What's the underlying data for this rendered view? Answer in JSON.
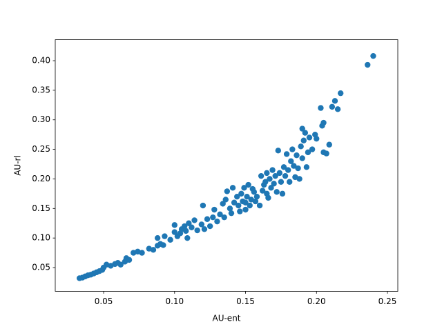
{
  "chart_data": {
    "type": "scatter",
    "x_label": "AU-ent",
    "y_label": "AU-rl",
    "color": "#1f77b4",
    "xlim": [
      0.0159,
      0.2573
    ],
    "ylim": [
      0.0099,
      0.4355
    ],
    "xticks": [
      0.05,
      {
        "value": 0.1,
        "label": "0.10"
      },
      0.15,
      {
        "value": 0.2,
        "label": "0.20"
      },
      0.25
    ],
    "yticks": [
      0.05,
      {
        "value": 0.1,
        "label": "0.10"
      },
      0.15,
      {
        "value": 0.2,
        "label": "0.20"
      },
      0.25,
      {
        "value": 0.3,
        "label": "0.30"
      },
      0.35,
      {
        "value": 0.4,
        "label": "0.40"
      }
    ],
    "x": [
      0.033,
      0.035,
      0.037,
      0.039,
      0.041,
      0.043,
      0.045,
      0.047,
      0.049,
      0.05,
      0.052,
      0.055,
      0.058,
      0.06,
      0.062,
      0.065,
      0.066,
      0.068,
      0.071,
      0.074,
      0.077,
      0.082,
      0.085,
      0.088,
      0.088,
      0.09,
      0.092,
      0.093,
      0.097,
      0.1,
      0.1,
      0.102,
      0.104,
      0.105,
      0.107,
      0.108,
      0.109,
      0.11,
      0.112,
      0.114,
      0.116,
      0.119,
      0.12,
      0.121,
      0.123,
      0.125,
      0.127,
      0.128,
      0.13,
      0.132,
      0.134,
      0.135,
      0.136,
      0.137,
      0.139,
      0.14,
      0.141,
      0.142,
      0.144,
      0.145,
      0.146,
      0.147,
      0.148,
      0.149,
      0.15,
      0.15,
      0.151,
      0.152,
      0.153,
      0.154,
      0.155,
      0.156,
      0.157,
      0.158,
      0.16,
      0.161,
      0.162,
      0.163,
      0.164,
      0.165,
      0.165,
      0.166,
      0.167,
      0.168,
      0.169,
      0.17,
      0.171,
      0.172,
      0.173,
      0.174,
      0.175,
      0.176,
      0.177,
      0.178,
      0.179,
      0.18,
      0.181,
      0.182,
      0.183,
      0.184,
      0.185,
      0.186,
      0.187,
      0.188,
      0.189,
      0.19,
      0.19,
      0.191,
      0.192,
      0.193,
      0.194,
      0.195,
      0.197,
      0.199,
      0.2,
      0.203,
      0.204,
      0.205,
      0.205,
      0.207,
      0.209,
      0.211,
      0.213,
      0.215,
      0.217,
      0.236,
      0.24
    ],
    "y": [
      0.032,
      0.033,
      0.035,
      0.037,
      0.038,
      0.04,
      0.042,
      0.044,
      0.046,
      0.05,
      0.055,
      0.053,
      0.056,
      0.058,
      0.055,
      0.06,
      0.066,
      0.063,
      0.075,
      0.077,
      0.075,
      0.082,
      0.08,
      0.087,
      0.1,
      0.09,
      0.088,
      0.103,
      0.097,
      0.11,
      0.122,
      0.103,
      0.108,
      0.115,
      0.12,
      0.112,
      0.1,
      0.125,
      0.118,
      0.13,
      0.113,
      0.123,
      0.155,
      0.115,
      0.132,
      0.12,
      0.135,
      0.148,
      0.128,
      0.14,
      0.158,
      0.135,
      0.165,
      0.179,
      0.15,
      0.142,
      0.185,
      0.16,
      0.17,
      0.155,
      0.145,
      0.175,
      0.162,
      0.185,
      0.148,
      0.16,
      0.17,
      0.19,
      0.155,
      0.165,
      0.183,
      0.178,
      0.162,
      0.17,
      0.155,
      0.205,
      0.18,
      0.19,
      0.195,
      0.21,
      0.175,
      0.168,
      0.2,
      0.185,
      0.215,
      0.192,
      0.205,
      0.178,
      0.248,
      0.21,
      0.195,
      0.175,
      0.22,
      0.205,
      0.242,
      0.215,
      0.195,
      0.23,
      0.25,
      0.222,
      0.203,
      0.24,
      0.218,
      0.2,
      0.255,
      0.285,
      0.235,
      0.265,
      0.278,
      0.22,
      0.245,
      0.27,
      0.25,
      0.275,
      0.268,
      0.32,
      0.29,
      0.295,
      0.245,
      0.243,
      0.258,
      0.322,
      0.332,
      0.318,
      0.345,
      0.393,
      0.408
    ]
  }
}
